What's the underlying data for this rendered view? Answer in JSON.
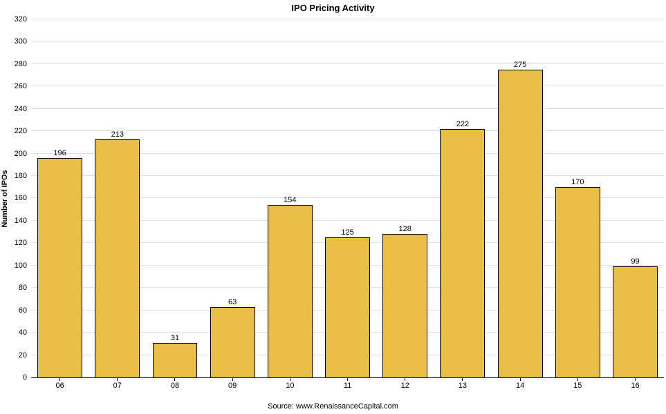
{
  "title": "IPO Pricing Activity",
  "source": "Source: www.RenaissanceCapital.com",
  "colors": {
    "bar_fill": "#EABD45",
    "bar_border": "#000000",
    "gridline": "#E0E0E0",
    "axis": "#000000",
    "background": "#FFFFFF",
    "text": "#000000"
  },
  "chart_data": {
    "type": "bar",
    "title": "IPO Pricing Activity",
    "categories": [
      "06",
      "07",
      "08",
      "09",
      "10",
      "11",
      "12",
      "13",
      "14",
      "15",
      "16"
    ],
    "values": [
      196,
      213,
      31,
      63,
      154,
      125,
      128,
      222,
      275,
      170,
      99
    ],
    "xlabel": "",
    "ylabel": "Number of IPOs",
    "ylim": [
      0,
      320
    ],
    "ytick_step": 20,
    "grid": "horizontal-only",
    "legend": "none",
    "value_labels": "above-bars",
    "source": "Source: www.RenaissanceCapital.com"
  }
}
